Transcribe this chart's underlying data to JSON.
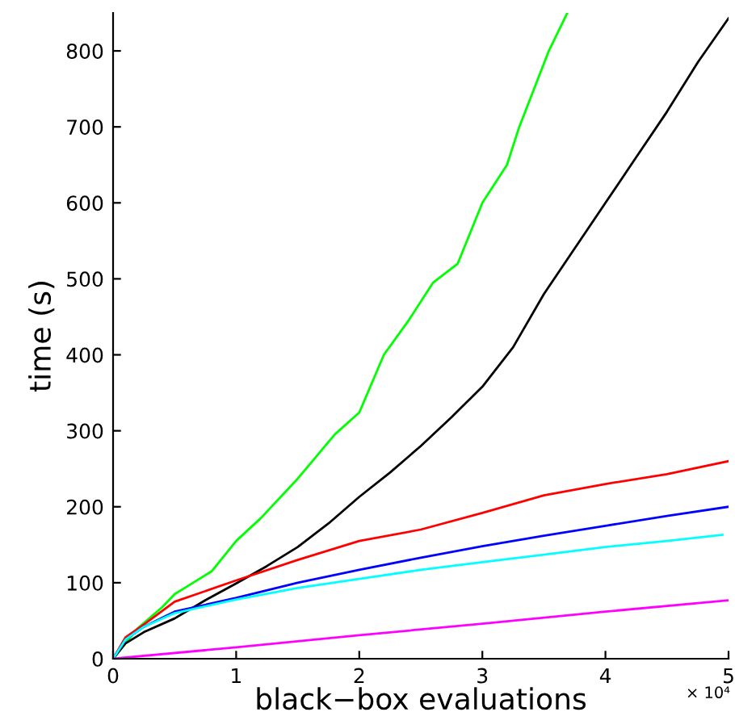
{
  "chart_data": {
    "type": "line",
    "xlabel": "black−box evaluations",
    "ylabel": "time (s)",
    "annotations": [
      "× 10⁴"
    ],
    "xlim": [
      0,
      5
    ],
    "ylim": [
      0,
      850
    ],
    "xticks": [
      0,
      1,
      2,
      3,
      4,
      5
    ],
    "yticks": [
      0,
      100,
      200,
      300,
      400,
      500,
      600,
      700,
      800
    ],
    "grid": false,
    "legend": false,
    "marker": "none",
    "line_style": "solid",
    "series": [
      {
        "color": "#00ff00",
        "x": [
          0,
          0.2,
          0.4,
          0.5,
          0.6,
          0.8,
          1.0,
          1.2,
          1.5,
          1.8,
          2.0,
          2.2,
          2.4,
          2.6,
          2.8,
          3.0,
          3.2,
          3.3,
          3.54,
          3.69
        ],
        "values": [
          0,
          40,
          68,
          85,
          95,
          115,
          155,
          185,
          237,
          295,
          324,
          400,
          445,
          495,
          520,
          600,
          650,
          700,
          800,
          850
        ]
      },
      {
        "color": "#000000",
        "x": [
          0,
          0.1,
          0.25,
          0.5,
          0.75,
          1.0,
          1.25,
          1.5,
          1.75,
          2.0,
          2.25,
          2.5,
          2.75,
          3.0,
          3.25,
          3.5,
          3.75,
          4.0,
          4.25,
          4.5,
          4.75,
          5.0
        ],
        "values": [
          0,
          20,
          35,
          53,
          77,
          99,
          122,
          147,
          178,
          213,
          245,
          280,
          318,
          358,
          410,
          480,
          540,
          600,
          660,
          720,
          785,
          843
        ]
      },
      {
        "color": "#ff0000",
        "x": [
          0,
          0.1,
          0.25,
          0.5,
          1.0,
          1.5,
          2.0,
          2.5,
          3.0,
          3.5,
          4.0,
          4.5,
          5.0
        ],
        "values": [
          0,
          28,
          45,
          75,
          103,
          130,
          155,
          170,
          192,
          215,
          230,
          243,
          260
        ]
      },
      {
        "color": "#0000ff",
        "x": [
          0,
          0.1,
          0.25,
          0.5,
          1.0,
          1.5,
          2.0,
          2.5,
          3.0,
          3.5,
          4.0,
          4.5,
          5.0
        ],
        "values": [
          0,
          25,
          42,
          62,
          80,
          100,
          117,
          133,
          148,
          162,
          175,
          188,
          200
        ]
      },
      {
        "color": "#00ffff",
        "x": [
          0,
          0.1,
          0.25,
          0.5,
          1.0,
          1.5,
          2.0,
          2.5,
          3.0,
          3.5,
          4.0,
          4.5,
          4.95
        ],
        "values": [
          0,
          25,
          42,
          60,
          78,
          93,
          105,
          117,
          127,
          137,
          147,
          155,
          163
        ]
      },
      {
        "color": "#ff00ff",
        "x": [
          0,
          1,
          2,
          3,
          4,
          5
        ],
        "values": [
          0,
          15,
          31,
          46,
          62,
          77
        ]
      }
    ]
  }
}
